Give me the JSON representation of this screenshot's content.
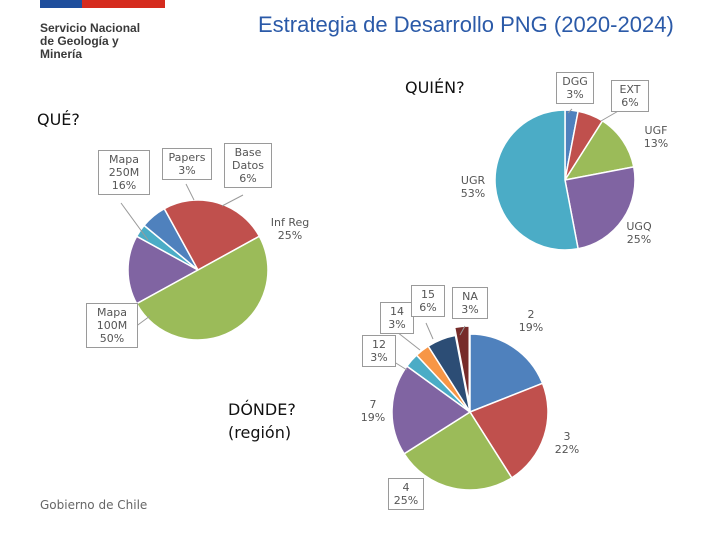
{
  "header": {
    "title": "Estrategia de Desarrollo PNG (2020-2024)",
    "logo_lines": [
      "Servicio Nacional",
      "de Geología y",
      "Minería"
    ]
  },
  "footer": {
    "org": "Gobierno de Chile"
  },
  "colors": {
    "flag_blue": "#1f4e9c",
    "flag_red": "#d52b1e",
    "title": "#2b5aa8"
  },
  "chart_data": [
    {
      "type": "pie",
      "title": "QUÉ?",
      "slices": [
        {
          "name": "Mapa",
          "name2": "250M",
          "value": 16,
          "pct": "16%",
          "color": "#8064a2"
        },
        {
          "name": "Papers",
          "name2": "",
          "value": 3,
          "pct": "3%",
          "color": "#4bacc6"
        },
        {
          "name": "Base",
          "name2": "Datos",
          "value": 6,
          "pct": "6%",
          "color": "#4f81bd"
        },
        {
          "name": "Inf Reg",
          "name2": "",
          "value": 25,
          "pct": "25%",
          "color": "#c0504d"
        },
        {
          "name": "Mapa",
          "name2": "100M",
          "value": 50,
          "pct": "50%",
          "color": "#9bbb59"
        }
      ]
    },
    {
      "type": "pie",
      "title": "QUIÉN?",
      "slices": [
        {
          "name": "DGG",
          "value": 3,
          "pct": "3%",
          "color": "#4f81bd"
        },
        {
          "name": "EXT",
          "value": 6,
          "pct": "6%",
          "color": "#c0504d"
        },
        {
          "name": "UGF",
          "value": 13,
          "pct": "13%",
          "color": "#9bbb59"
        },
        {
          "name": "UGQ",
          "value": 25,
          "pct": "25%",
          "color": "#8064a2"
        },
        {
          "name": "UGR",
          "value": 53,
          "pct": "53%",
          "color": "#4bacc6"
        }
      ]
    },
    {
      "type": "pie",
      "title": "DÓNDE? (región)",
      "title_lines": [
        "DÓNDE?",
        "(región)"
      ],
      "slices": [
        {
          "name": "2",
          "value": 19,
          "pct": "19%",
          "color": "#4f81bd"
        },
        {
          "name": "3",
          "value": 22,
          "pct": "22%",
          "color": "#c0504d"
        },
        {
          "name": "4",
          "value": 25,
          "pct": "25%",
          "color": "#9bbb59"
        },
        {
          "name": "7",
          "value": 19,
          "pct": "19%",
          "color": "#8064a2"
        },
        {
          "name": "12",
          "value": 3,
          "pct": "3%",
          "color": "#4bacc6"
        },
        {
          "name": "14",
          "value": 3,
          "pct": "3%",
          "color": "#f79646"
        },
        {
          "name": "15",
          "value": 6,
          "pct": "6%",
          "color": "#2c4d75"
        },
        {
          "name": "NA",
          "value": 3,
          "pct": "3%",
          "color": "#772c2a"
        }
      ]
    }
  ]
}
